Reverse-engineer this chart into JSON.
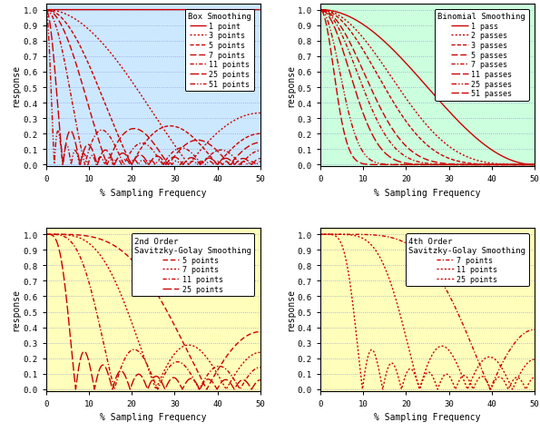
{
  "bg_colors": [
    "#cce8ff",
    "#ccffdd",
    "#ffffbb",
    "#ffffbb"
  ],
  "line_color": "#cc0000",
  "grid_color": "#9999ff",
  "fig_bg": "#ffffff",
  "titles": [
    "Box Smoothing",
    "Binomial Smoothing",
    "2nd Order\nSavitzky-Golay Smoothing",
    "4th Order\nSavitzky-Golay Smoothing"
  ],
  "xlabel": "% Sampling Frequency",
  "ylabel": "response",
  "xlim": [
    0,
    50
  ],
  "ylim": [
    0.0,
    1.0
  ],
  "yticks": [
    0.0,
    0.1,
    0.2,
    0.3,
    0.4,
    0.5,
    0.6,
    0.7,
    0.8,
    0.9,
    1.0
  ],
  "xticks": [
    0,
    10,
    20,
    30,
    40,
    50
  ],
  "box_points": [
    1,
    3,
    5,
    7,
    11,
    25,
    51
  ],
  "box_labels": [
    "1 point",
    "3 points",
    "5 points",
    "7 points",
    "11 points",
    "25 points",
    "51 points"
  ],
  "binom_passes": [
    1,
    2,
    3,
    5,
    7,
    11,
    25,
    51
  ],
  "binom_labels": [
    "1 pass",
    "2 passes",
    "3 passes",
    "5 passes",
    "7 passes",
    "11 passes",
    "25 passes",
    "51 passes"
  ],
  "sg2_points": [
    5,
    7,
    11,
    25
  ],
  "sg2_labels": [
    "5 points",
    "7 points",
    "11 points",
    "25 points"
  ],
  "sg4_points": [
    7,
    11,
    25
  ],
  "sg4_labels": [
    "7 points",
    "11 points",
    "25 points"
  ]
}
